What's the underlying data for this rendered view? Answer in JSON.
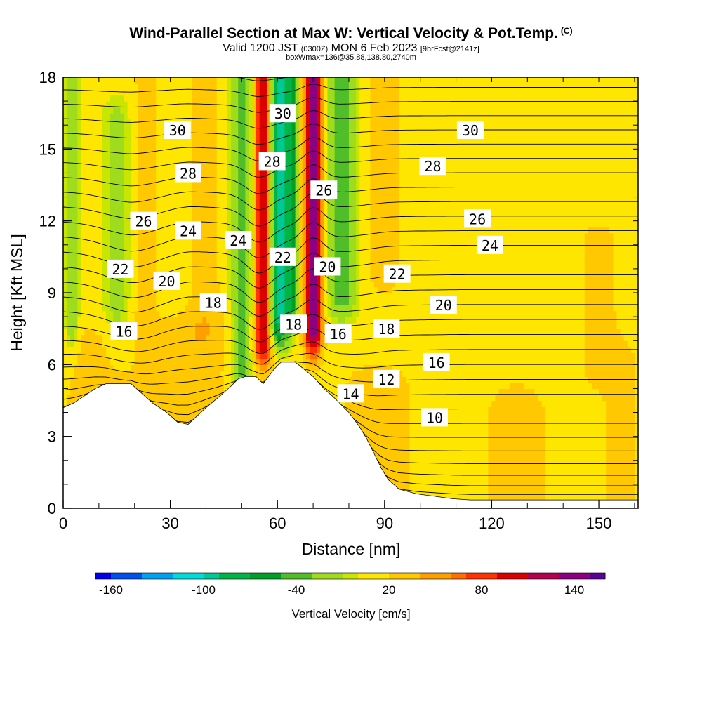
{
  "title": {
    "main": "Wind-Parallel Section at Max W: Vertical Velocity & Pot.Temp.",
    "copyright": "(C)",
    "valid_prefix": "Valid 1200 JST",
    "valid_utc": "(0300Z)",
    "valid_date": "MON 6 Feb 2023",
    "forecast": "[9hrFcst@2141z]",
    "box": "boxWmax=136@35.88,138.80,2740m"
  },
  "colors": {
    "scale": [
      "#0000f0",
      "#0050f0",
      "#00a0f5",
      "#00dcdc",
      "#00c896",
      "#00b446",
      "#00a028",
      "#50be28",
      "#a0dc1e",
      "#c8e600",
      "#ffe600",
      "#ffc800",
      "#ffa000",
      "#ff6e00",
      "#ff3200",
      "#dc0000",
      "#b40050",
      "#8c0082",
      "#5a0096"
    ],
    "terrain": "#ffffff"
  },
  "chart_data": {
    "type": "heatmap",
    "xlabel": "Distance [nm]",
    "ylabel": "Height [Kft MSL]",
    "xlim": [
      0,
      161
    ],
    "ylim": [
      0,
      18
    ],
    "xticks": [
      0,
      30,
      60,
      90,
      120,
      150
    ],
    "yticks": [
      0,
      3,
      6,
      9,
      12,
      15,
      18
    ],
    "colorbar": {
      "label": "Vertical Velocity [cm/s]",
      "ticks": [
        -160,
        -100,
        -40,
        20,
        80,
        140
      ],
      "levels": [
        -170,
        -160,
        -150,
        -140,
        -130,
        -120,
        -110,
        -100,
        -90,
        -80,
        -70,
        -60,
        -50,
        -40,
        -30,
        -20,
        -10,
        0,
        10,
        20,
        30,
        40,
        50,
        60,
        70,
        80,
        90,
        100,
        110,
        120,
        130,
        140,
        150,
        160
      ]
    },
    "vertical_velocity_features": [
      {
        "x": 2.5,
        "half_width": 2,
        "z_min": 7.5,
        "z_max": 18,
        "w": -35
      },
      {
        "x": 15,
        "half_width": 4,
        "z_min": 7,
        "z_max": 16,
        "w": -25
      },
      {
        "x": 23,
        "half_width": 3,
        "z_min": 8,
        "z_max": 18,
        "w": 25
      },
      {
        "x": 40,
        "half_width": 5,
        "z_min": 8,
        "z_max": 18,
        "w": 20
      },
      {
        "x": 50,
        "half_width": 3,
        "z_min": 6,
        "z_max": 18,
        "w": -50
      },
      {
        "x": 56,
        "half_width": 2.5,
        "z_min": 7,
        "z_max": 18,
        "w": 110
      },
      {
        "x": 60.5,
        "half_width": 3,
        "z_min": 8,
        "z_max": 18,
        "w": -110
      },
      {
        "x": 64,
        "half_width": 1.5,
        "z_min": 9,
        "z_max": 18,
        "w": -60
      },
      {
        "x": 70,
        "half_width": 2.5,
        "z_min": 7.5,
        "z_max": 18,
        "w": 130
      },
      {
        "x": 78,
        "half_width": 4,
        "z_min": 9,
        "z_max": 18,
        "w": -50
      },
      {
        "x": 90,
        "half_width": 5,
        "z_min": 10,
        "z_max": 18,
        "w": 25
      },
      {
        "x": 10,
        "half_width": 10,
        "z_min": 3.5,
        "z_max": 6.5,
        "w": 25
      },
      {
        "x": 35,
        "half_width": 12,
        "z_min": 3,
        "z_max": 7,
        "w": 25
      },
      {
        "x": 88,
        "half_width": 10,
        "z_min": 0.5,
        "z_max": 5,
        "w": 25
      },
      {
        "x": 127,
        "half_width": 8,
        "z_min": 0.5,
        "z_max": 4,
        "w": 30
      },
      {
        "x": 150,
        "half_width": 6,
        "z_min": 6,
        "z_max": 11,
        "w": 20
      },
      {
        "x": 156,
        "half_width": 5,
        "z_min": 0.5,
        "z_max": 6,
        "w": 20
      }
    ],
    "terrain": {
      "x": [
        0,
        3,
        6,
        9,
        12,
        15,
        19,
        22,
        25,
        29,
        32,
        35,
        40,
        44,
        47,
        49,
        51,
        54,
        56,
        59,
        61,
        65,
        70,
        73,
        76,
        80,
        83,
        85,
        87,
        89,
        91,
        94,
        99,
        104,
        109,
        114,
        161
      ],
      "height": [
        4.2,
        4.4,
        4.7,
        5.0,
        5.2,
        5.2,
        5.2,
        4.8,
        4.4,
        4.0,
        3.6,
        3.5,
        4.2,
        4.7,
        5.1,
        5.4,
        5.5,
        5.5,
        5.2,
        5.8,
        6.1,
        6.1,
        5.5,
        5.0,
        4.6,
        4.0,
        3.4,
        2.9,
        2.3,
        1.7,
        1.2,
        0.8,
        0.6,
        0.5,
        0.4,
        0.35,
        0.35
      ]
    },
    "potential_temperature": {
      "interval": 1,
      "min": 1,
      "max": 32,
      "labels": [
        {
          "text": "30",
          "x": 32,
          "z": 15.8
        },
        {
          "text": "28",
          "x": 35,
          "z": 14.0
        },
        {
          "text": "26",
          "x": 22.5,
          "z": 12.0
        },
        {
          "text": "24",
          "x": 35,
          "z": 11.6
        },
        {
          "text": "22",
          "x": 16,
          "z": 10.0
        },
        {
          "text": "20",
          "x": 29,
          "z": 9.5
        },
        {
          "text": "18",
          "x": 42,
          "z": 8.6
        },
        {
          "text": "16",
          "x": 17,
          "z": 7.4
        },
        {
          "text": "24",
          "x": 49,
          "z": 11.2
        },
        {
          "text": "30",
          "x": 61.5,
          "z": 16.5
        },
        {
          "text": "28",
          "x": 58.5,
          "z": 14.5
        },
        {
          "text": "22",
          "x": 61.5,
          "z": 10.5
        },
        {
          "text": "18",
          "x": 64.5,
          "z": 7.7
        },
        {
          "text": "26",
          "x": 73,
          "z": 13.3
        },
        {
          "text": "20",
          "x": 74,
          "z": 10.1
        },
        {
          "text": "16",
          "x": 77,
          "z": 7.3
        },
        {
          "text": "14",
          "x": 80.5,
          "z": 4.8
        },
        {
          "text": "18",
          "x": 90.5,
          "z": 7.5
        },
        {
          "text": "22",
          "x": 93.5,
          "z": 9.8
        },
        {
          "text": "12",
          "x": 90.5,
          "z": 5.4
        },
        {
          "text": "10",
          "x": 104,
          "z": 3.8
        },
        {
          "text": "16",
          "x": 104.5,
          "z": 6.1
        },
        {
          "text": "20",
          "x": 106.5,
          "z": 8.5
        },
        {
          "text": "28",
          "x": 103.5,
          "z": 14.3
        },
        {
          "text": "26",
          "x": 116,
          "z": 12.1
        },
        {
          "text": "24",
          "x": 119.5,
          "z": 11.0
        },
        {
          "text": "30",
          "x": 114,
          "z": 15.8
        }
      ]
    }
  }
}
